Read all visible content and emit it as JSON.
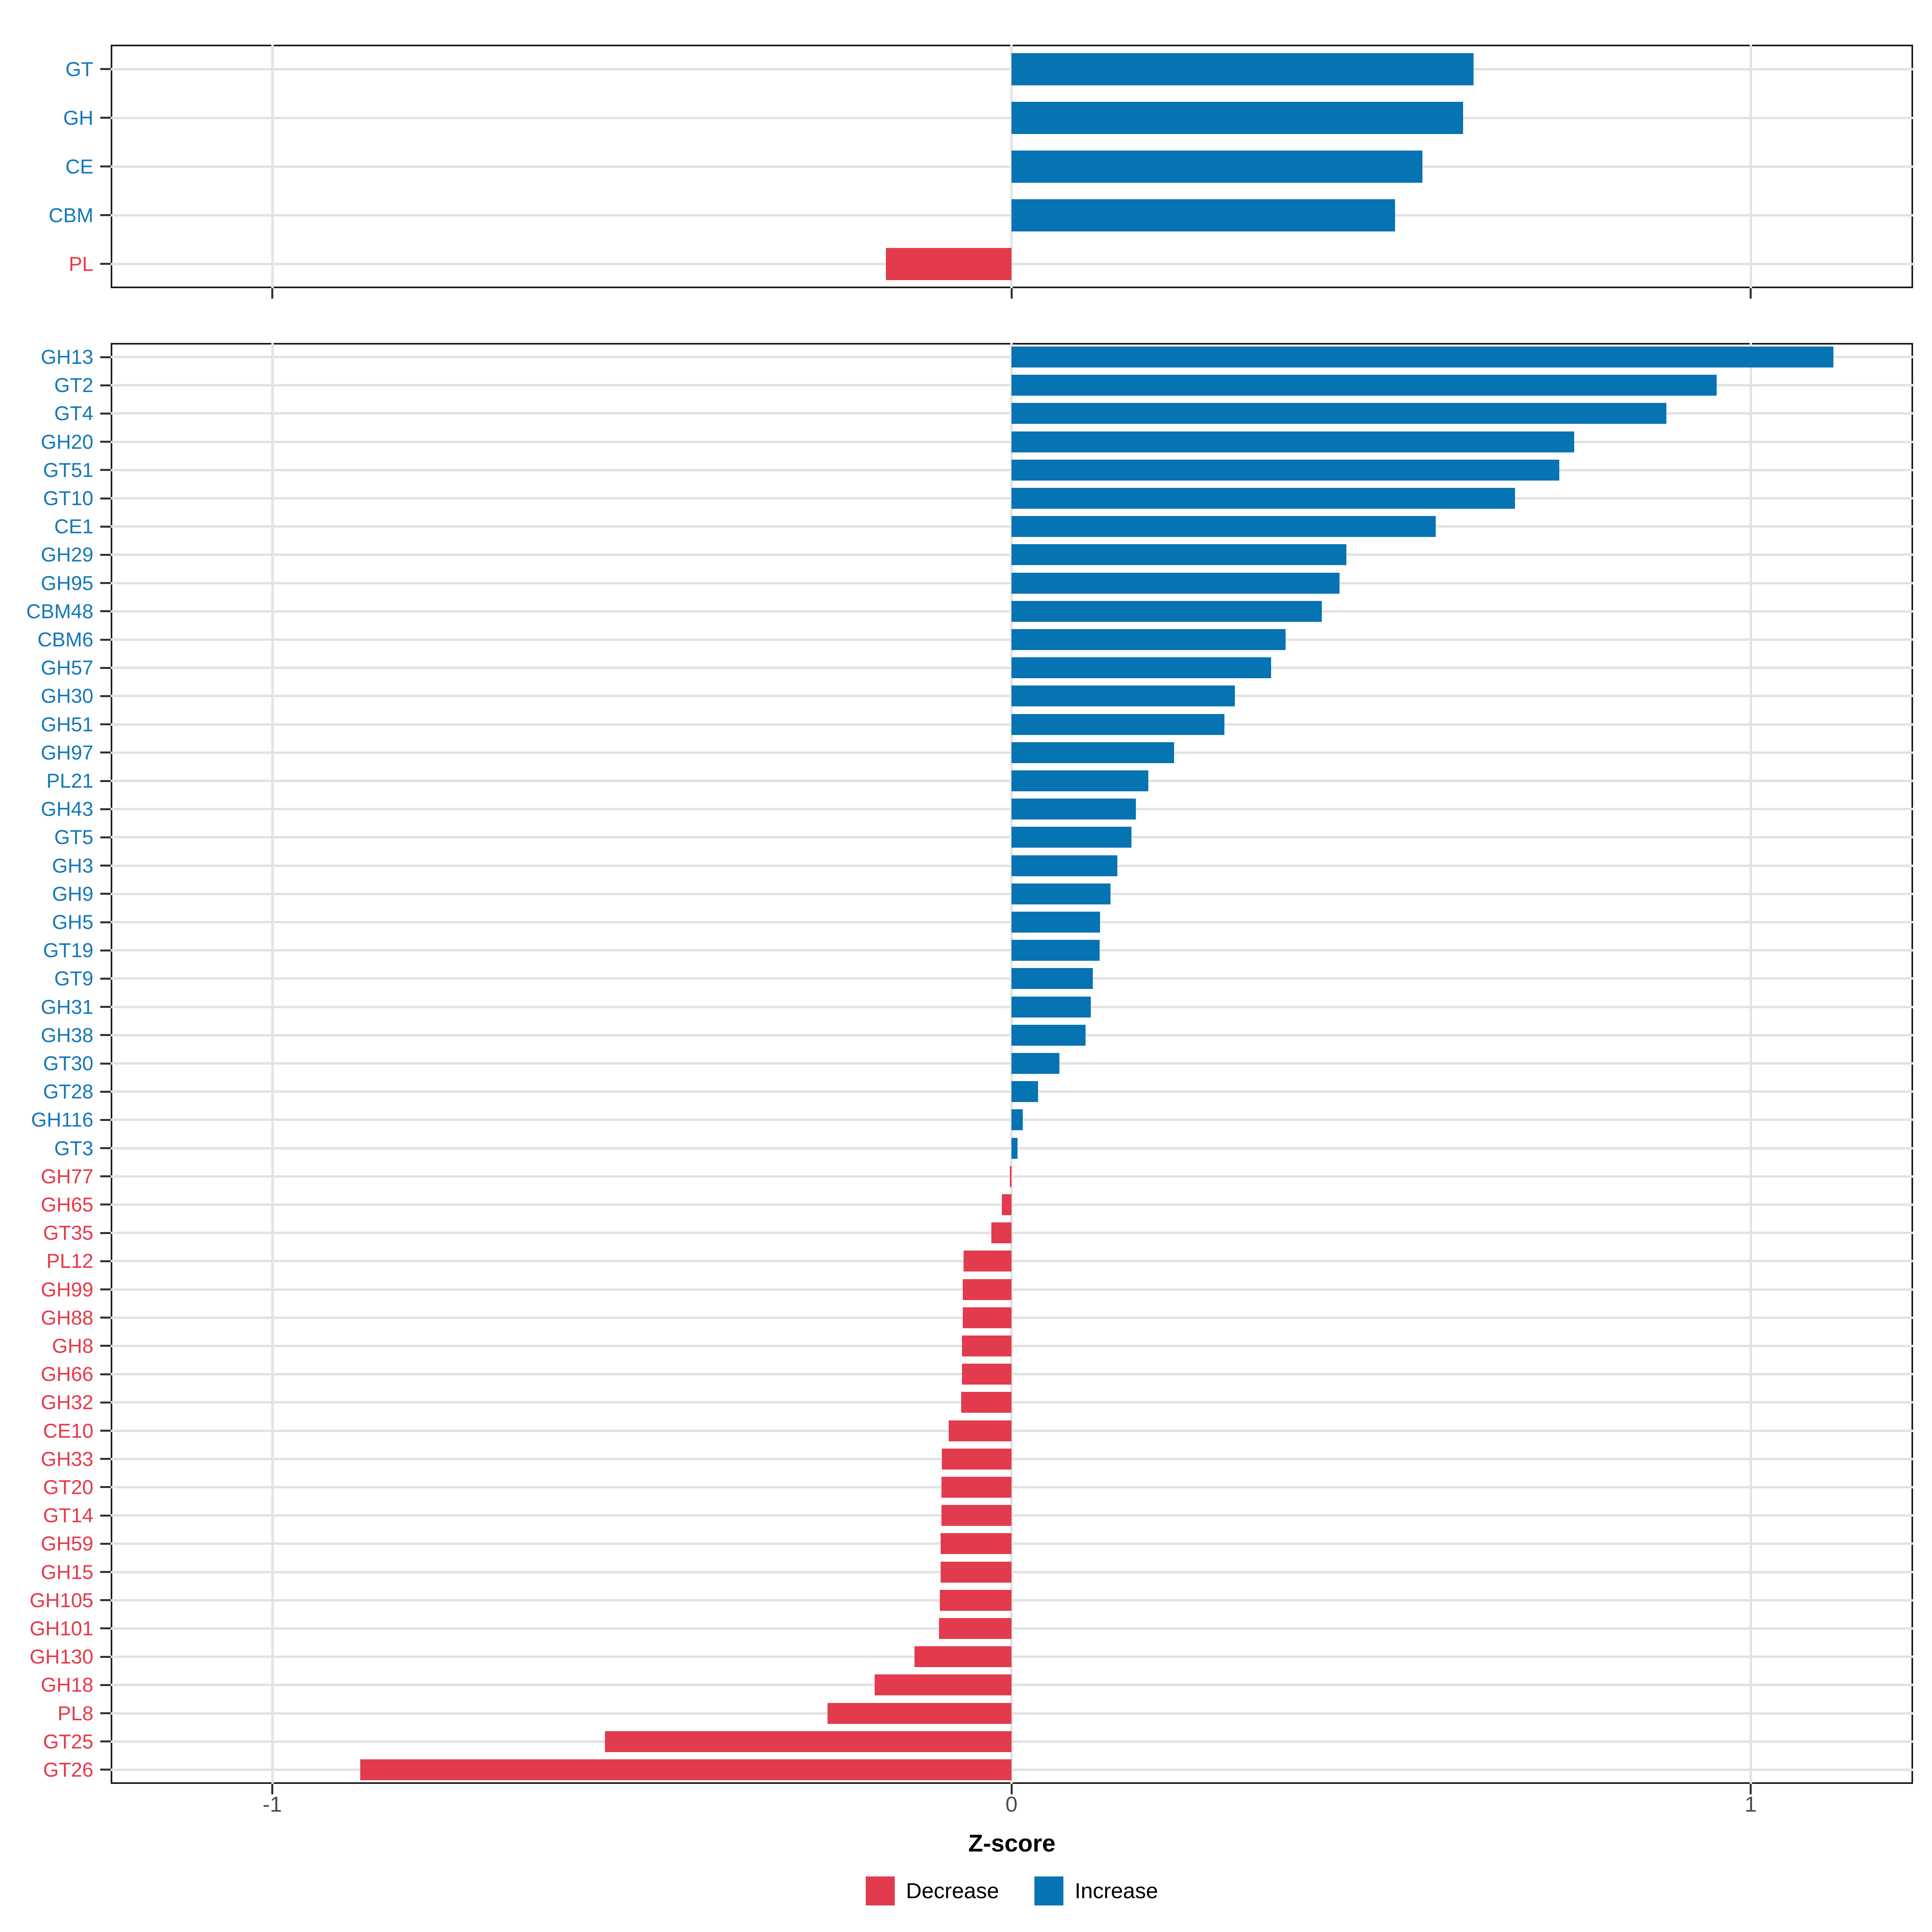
{
  "axis_x": {
    "title": "Z-score",
    "ticks": [
      -1,
      0,
      1
    ],
    "tick_labels": [
      "-1",
      "0",
      "1"
    ]
  },
  "legend": {
    "items": [
      {
        "label": "Decrease",
        "color": "#e23b4d"
      },
      {
        "label": "Increase",
        "color": "#0673b2"
      }
    ]
  },
  "colors": {
    "increase_bar": "#0673b2",
    "decrease_bar": "#e23b4d",
    "increase_label": "#1578b8",
    "decrease_label": "#e6394a",
    "gridline": "#e3e3e3",
    "panel_border": "#1a1a1a",
    "tick": "#333333",
    "tick_label": "#4d4d4d"
  },
  "chart_data": [
    {
      "type": "bar",
      "orientation": "horizontal",
      "panel": "classes",
      "xlabel": "Z-score",
      "xlim": [
        -1.22,
        1.22
      ],
      "grid": "major-only",
      "legend_position": "bottom",
      "categories": [
        "GT",
        "GH",
        "CE",
        "CBM",
        "PL"
      ],
      "values": [
        0.625,
        0.611,
        0.556,
        0.519,
        -0.17
      ]
    },
    {
      "type": "bar",
      "orientation": "horizontal",
      "panel": "families",
      "xlabel": "Z-score",
      "xlim": [
        -1.22,
        1.22
      ],
      "grid": "major-only",
      "legend_position": "bottom",
      "categories": [
        "GH13",
        "GT2",
        "GT4",
        "GH20",
        "GT51",
        "GT10",
        "CE1",
        "GH29",
        "GH95",
        "CBM48",
        "CBM6",
        "GH57",
        "GH30",
        "GH51",
        "GH97",
        "PL21",
        "GH43",
        "GT5",
        "GH3",
        "GH9",
        "GH5",
        "GT19",
        "GT9",
        "GH31",
        "GH38",
        "GT30",
        "GT28",
        "GH116",
        "GT3",
        "GH77",
        "GH65",
        "GT35",
        "PL12",
        "GH99",
        "GH88",
        "GH8",
        "GH66",
        "GH32",
        "CE10",
        "GH33",
        "GT20",
        "GT14",
        "GH59",
        "GH15",
        "GH105",
        "GH101",
        "GH130",
        "GH18",
        "PL8",
        "GT25",
        "GT26"
      ],
      "values": [
        1.112,
        0.954,
        0.886,
        0.761,
        0.741,
        0.681,
        0.574,
        0.453,
        0.444,
        0.42,
        0.371,
        0.351,
        0.302,
        0.288,
        0.22,
        0.185,
        0.168,
        0.162,
        0.143,
        0.134,
        0.12,
        0.119,
        0.11,
        0.107,
        0.1,
        0.065,
        0.036,
        0.015,
        0.008,
        -0.002,
        -0.013,
        -0.027,
        -0.065,
        -0.066,
        -0.066,
        -0.067,
        -0.067,
        -0.068,
        -0.085,
        -0.094,
        -0.095,
        -0.095,
        -0.096,
        -0.096,
        -0.097,
        -0.098,
        -0.131,
        -0.185,
        -0.249,
        -0.55,
        -0.881
      ]
    }
  ]
}
